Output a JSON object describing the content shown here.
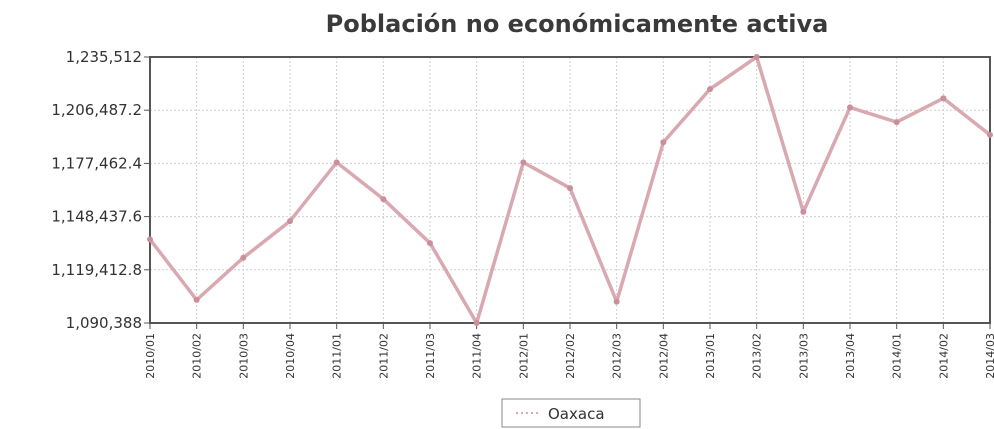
{
  "chart_data": {
    "type": "line",
    "title": "Población no económicamente activa",
    "xlabel": "",
    "ylabel": "",
    "categories": [
      "2010/01",
      "2010/02",
      "2010/03",
      "2010/04",
      "2011/01",
      "2011/02",
      "2011/03",
      "2011/04",
      "2012/01",
      "2012/02",
      "2012/03",
      "2012/04",
      "2013/01",
      "2013/02",
      "2013/03",
      "2013/04",
      "2014/01",
      "2014/02",
      "2014/03"
    ],
    "y_ticks": [
      "1,235,512",
      "1,206,487.2",
      "1,177,462.4",
      "1,148,437.6",
      "1,119,412.8",
      "1,090,388"
    ],
    "ylim": [
      1090388,
      1235512
    ],
    "series": [
      {
        "name": "Oaxaca",
        "values": [
          1136000,
          1103000,
          1126000,
          1146000,
          1178000,
          1158000,
          1134000,
          1090388,
          1178000,
          1164000,
          1102000,
          1189000,
          1218000,
          1235512,
          1151000,
          1208000,
          1200000,
          1213000,
          1193000
        ]
      }
    ],
    "grid": true,
    "legend_position": "bottom-center",
    "colors": {
      "line": "#d9a8b0",
      "grid": "#cfcfcf",
      "frame": "#555555"
    }
  }
}
